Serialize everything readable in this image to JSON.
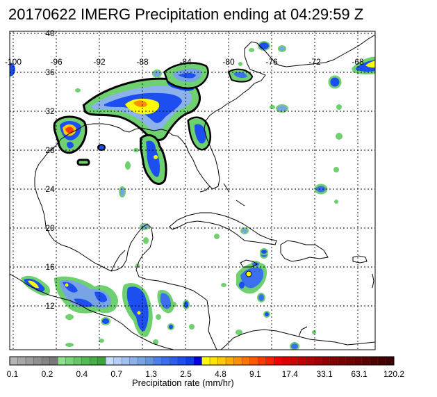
{
  "title": "20170622 IMERG Precipitation ending at 04:29:59 Z",
  "map": {
    "lon_labels": [
      "-100",
      "-96",
      "-92",
      "-88",
      "-84",
      "-80",
      "-76",
      "-72",
      "-68"
    ],
    "lat_labels": [
      "40",
      "36",
      "32",
      "28",
      "24",
      "20",
      "16",
      "12"
    ],
    "grid": true,
    "background_color": "#ffffff",
    "coastline_color": "#000000"
  },
  "colorbar": {
    "title": "Precipitation rate (mm/hr)",
    "tick_labels": [
      "0.1",
      "0.2",
      "0.4",
      "0.7",
      "1.3",
      "2.5",
      "4.8",
      "9.1",
      "17.4",
      "33.1",
      "63.1",
      "120.2"
    ],
    "colors": [
      "#b4b4b4",
      "#a8a8a8",
      "#9c9c9c",
      "#909090",
      "#848484",
      "#787878",
      "#8ee08e",
      "#7ad47a",
      "#66c866",
      "#52bc52",
      "#46b046",
      "#3aa43a",
      "#c8dcff",
      "#b4cef8",
      "#a0c0f2",
      "#8cb2ec",
      "#78a4e6",
      "#6496e0",
      "#4c7ef0",
      "#3c6ef0",
      "#2c5ef0",
      "#1c4ef0",
      "#0c3ee8",
      "#0000dc",
      "#ffff00",
      "#ffe400",
      "#ffc800",
      "#ffac00",
      "#ff9000",
      "#ff7400",
      "#ff5800",
      "#ff3c00",
      "#ff2000",
      "#f00000",
      "#e00000",
      "#d00000",
      "#c00000",
      "#b00000",
      "#a00000",
      "#900000",
      "#800000",
      "#780000",
      "#6e0000",
      "#640000",
      "#5a0000",
      "#500000",
      "#460000",
      "#3c0000"
    ]
  }
}
